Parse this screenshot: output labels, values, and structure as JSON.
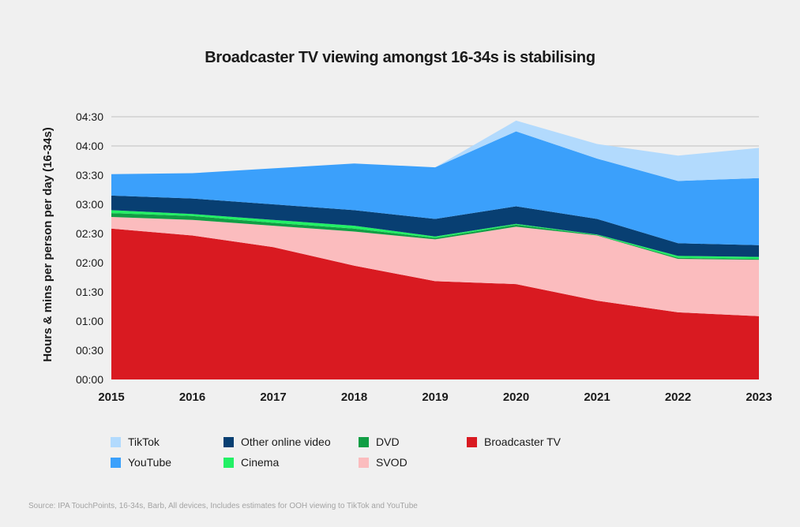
{
  "title": "Broadcaster TV viewing amongst 16-34s is stabilising",
  "source": "Source: IPA TouchPoints, 16-34s, Barb, All devices, Includes estimates for OOH viewing to TikTok and YouTube",
  "chart_data": {
    "type": "area",
    "stacked": true,
    "title": "Broadcaster TV viewing amongst 16-34s is stabilising",
    "xlabel": "",
    "ylabel": "Hours & mins per person per day (16-34s)",
    "units": "minutes",
    "ylim": [
      0,
      270
    ],
    "yticks": [
      0,
      30,
      60,
      90,
      120,
      150,
      180,
      210,
      240,
      270
    ],
    "ytick_labels": [
      "00:00",
      "00:30",
      "01:00",
      "01:30",
      "02:00",
      "02:30",
      "03:00",
      "03:30",
      "04:00",
      "04:30"
    ],
    "grid": true,
    "legend_position": "bottom",
    "categories": [
      "2015",
      "2016",
      "2017",
      "2018",
      "2019",
      "2020",
      "2021",
      "2022",
      "2023"
    ],
    "series": [
      {
        "name": "Broadcaster TV",
        "color": "#d91a21",
        "values": [
          155,
          148,
          136,
          117,
          101,
          98,
          81,
          69,
          65
        ]
      },
      {
        "name": "SVOD",
        "color": "#fbbcbe",
        "values": [
          12,
          16,
          22,
          35,
          43,
          59,
          67,
          55,
          58
        ]
      },
      {
        "name": "DVD",
        "color": "#119e45",
        "values": [
          4,
          4,
          3,
          3,
          1.5,
          2,
          0.5,
          1,
          1
        ]
      },
      {
        "name": "Cinema",
        "color": "#22f065",
        "values": [
          3,
          2,
          3,
          3,
          1.5,
          1,
          0.5,
          2,
          2
        ]
      },
      {
        "name": "Other online video",
        "color": "#083f72",
        "values": [
          15,
          16,
          16,
          16,
          18,
          18,
          16,
          13,
          12
        ]
      },
      {
        "name": "YouTube",
        "color": "#3ba0fb",
        "values": [
          22,
          26,
          37,
          48,
          53,
          77,
          62,
          64,
          69
        ]
      },
      {
        "name": "TikTok",
        "color": "#b2dafd",
        "values": [
          0,
          0,
          0,
          0,
          0,
          11,
          15,
          26,
          31
        ]
      }
    ]
  },
  "legend": [
    {
      "label": "TikTok",
      "color": "#b2dafd"
    },
    {
      "label": "YouTube",
      "color": "#3ba0fb"
    },
    {
      "label": "Other online video",
      "color": "#083f72"
    },
    {
      "label": "Cinema",
      "color": "#22f065"
    },
    {
      "label": "DVD",
      "color": "#119e45"
    },
    {
      "label": "SVOD",
      "color": "#fbbcbe"
    },
    {
      "label": "Broadcaster TV",
      "color": "#d91a21"
    }
  ]
}
